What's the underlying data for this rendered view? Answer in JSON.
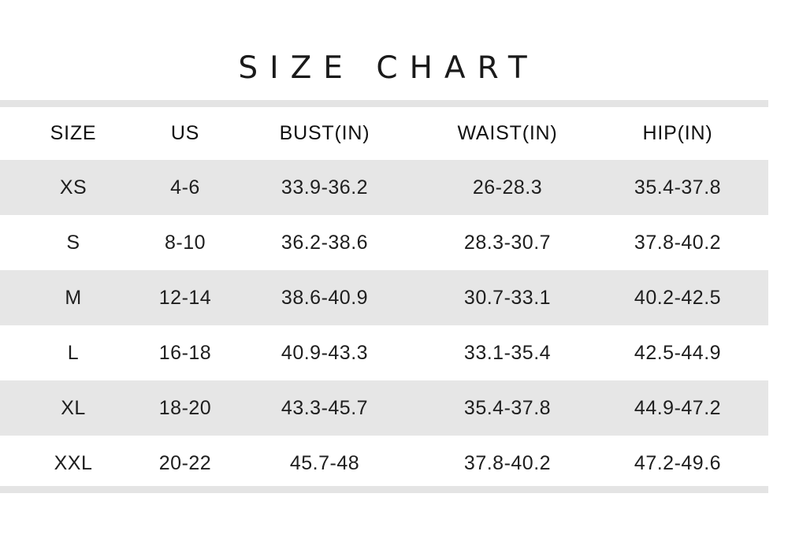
{
  "title": "SIZE CHART",
  "table": {
    "headers": [
      "SIZE",
      "US",
      "BUST(IN)",
      "WAIST(IN)",
      "HIP(IN)"
    ],
    "rows": [
      [
        "XS",
        "4-6",
        "33.9-36.2",
        "26-28.3",
        "35.4-37.8"
      ],
      [
        "S",
        "8-10",
        "36.2-38.6",
        "28.3-30.7",
        "37.8-40.2"
      ],
      [
        "M",
        "12-14",
        "38.6-40.9",
        "30.7-33.1",
        "40.2-42.5"
      ],
      [
        "L",
        "16-18",
        "40.9-43.3",
        "33.1-35.4",
        "42.5-44.9"
      ],
      [
        "XL",
        "18-20",
        "43.3-45.7",
        "35.4-37.8",
        "44.9-47.2"
      ],
      [
        "XXL",
        "20-22",
        "45.7-48",
        "37.8-40.2",
        "47.2-49.6"
      ]
    ]
  },
  "colors": {
    "shaded_row": "#e6e6e6",
    "rule": "#e4e4e4",
    "text": "#1e1e1e"
  }
}
